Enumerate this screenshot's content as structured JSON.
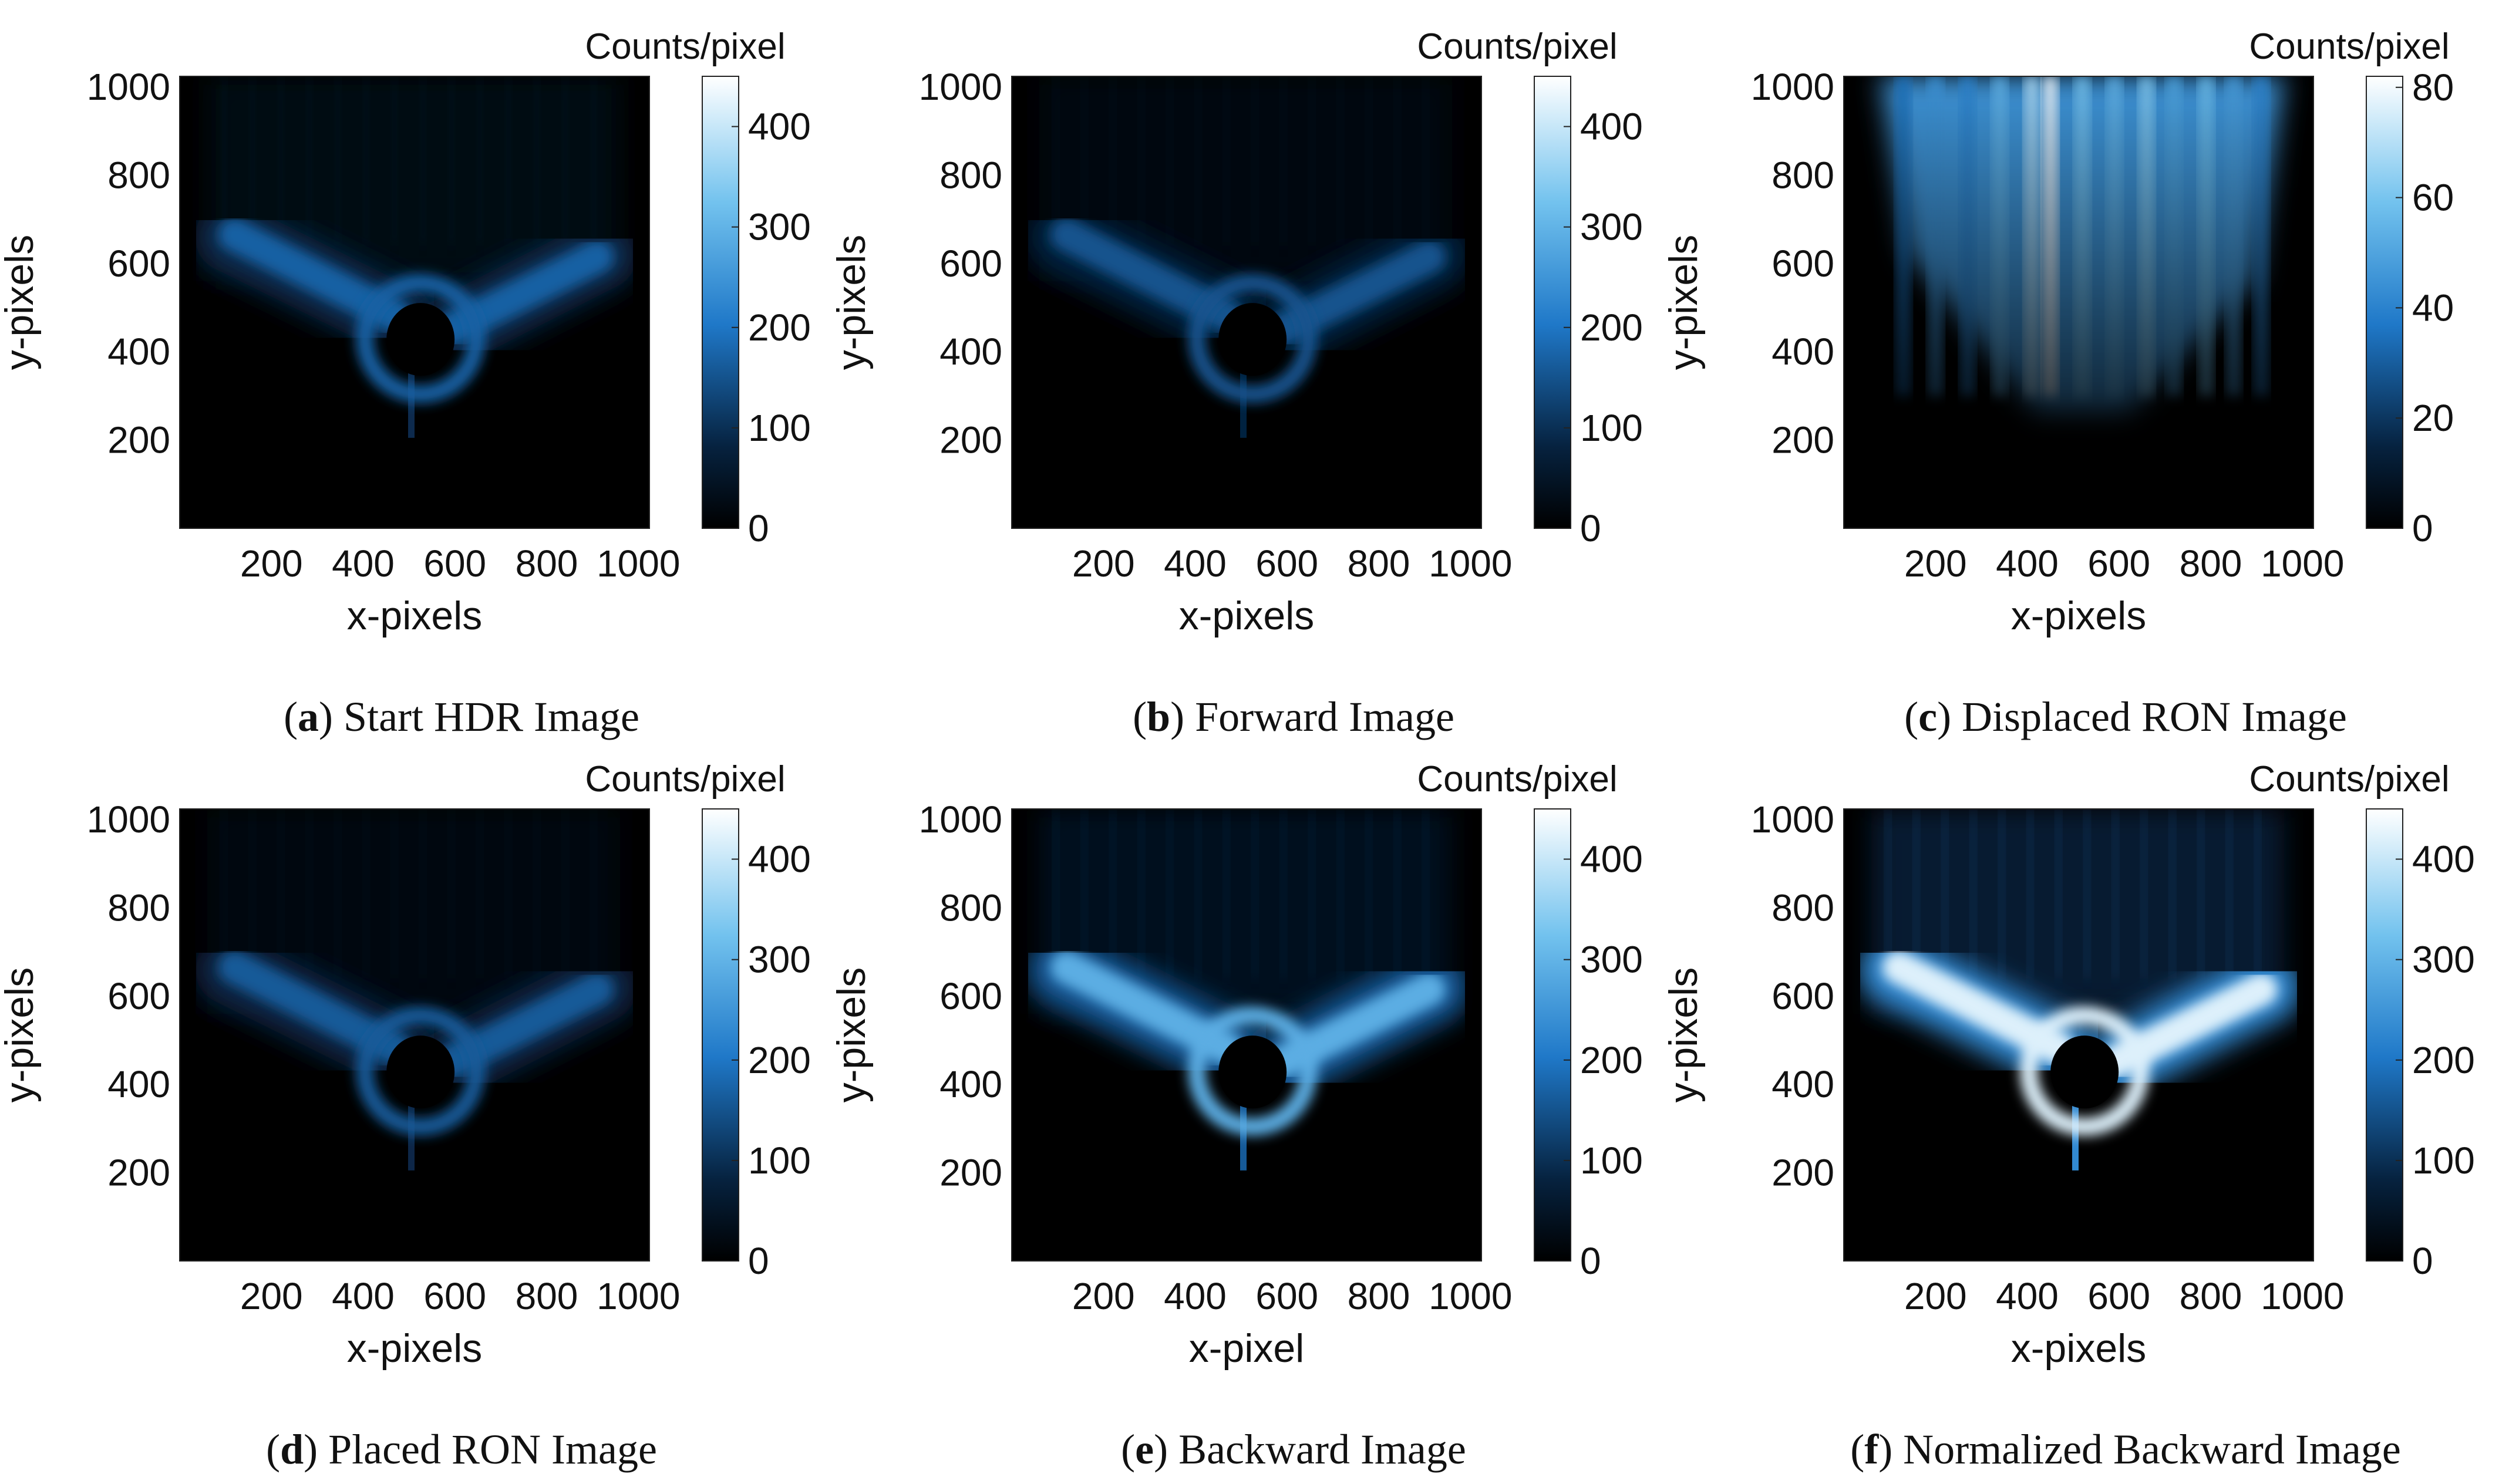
{
  "figure": {
    "colors": {
      "colormap_low": "#000000",
      "colormap_mid": "#1f78c8",
      "colormap_high": "#ffffff",
      "background": "#ffffff",
      "text": "#111111"
    }
  },
  "chart_data": [
    {
      "type": "heatmap",
      "panel_letter": "a",
      "caption": "Start HDR Image",
      "xlabel": "x-pixels",
      "ylabel": "y-pixels",
      "xlim": [
        0,
        1024
      ],
      "ylim": [
        0,
        1024
      ],
      "x_ticks": [
        200,
        400,
        600,
        800,
        1000
      ],
      "y_ticks": [
        200,
        400,
        600,
        800,
        1000
      ],
      "colorbar": {
        "label": "Counts/pixel",
        "ticks": [
          0,
          100,
          200,
          300,
          400
        ],
        "range": [
          0,
          450
        ]
      },
      "pattern": "y-shape",
      "peak_value": 170
    },
    {
      "type": "heatmap",
      "panel_letter": "b",
      "caption": "Forward Image",
      "xlabel": "x-pixels",
      "ylabel": "y-pixels",
      "xlim": [
        0,
        1024
      ],
      "ylim": [
        0,
        1024
      ],
      "x_ticks": [
        200,
        400,
        600,
        800,
        1000
      ],
      "y_ticks": [
        200,
        400,
        600,
        800,
        1000
      ],
      "colorbar": {
        "label": "Counts/pixel",
        "ticks": [
          0,
          100,
          200,
          300,
          400
        ],
        "range": [
          0,
          450
        ]
      },
      "pattern": "y-shape",
      "peak_value": 150
    },
    {
      "type": "heatmap",
      "panel_letter": "c",
      "caption": "Displaced RON Image",
      "xlabel": "x-pixels",
      "ylabel": "y-pixels",
      "xlim": [
        0,
        1024
      ],
      "ylim": [
        0,
        1024
      ],
      "x_ticks": [
        200,
        400,
        600,
        800,
        1000
      ],
      "y_ticks": [
        200,
        400,
        600,
        800,
        1000
      ],
      "colorbar": {
        "label": "Counts/pixel",
        "ticks": [
          0,
          20,
          40,
          60,
          80
        ],
        "range": [
          0,
          82
        ]
      },
      "pattern": "vertical-streaks",
      "peak_value": 80
    },
    {
      "type": "heatmap",
      "panel_letter": "d",
      "caption": "Placed RON Image",
      "xlabel": "x-pixels",
      "ylabel": "y-pixels",
      "xlim": [
        0,
        1024
      ],
      "ylim": [
        0,
        1024
      ],
      "x_ticks": [
        200,
        400,
        600,
        800,
        1000
      ],
      "y_ticks": [
        200,
        400,
        600,
        800,
        1000
      ],
      "colorbar": {
        "label": "Counts/pixel",
        "ticks": [
          0,
          100,
          200,
          300,
          400
        ],
        "range": [
          0,
          450
        ]
      },
      "pattern": "y-shape",
      "peak_value": 160
    },
    {
      "type": "heatmap",
      "panel_letter": "e",
      "caption": "Backward Image",
      "xlabel": "x-pixel",
      "ylabel": "y-pixels",
      "xlim": [
        0,
        1024
      ],
      "ylim": [
        0,
        1024
      ],
      "x_ticks": [
        200,
        400,
        600,
        800,
        1000
      ],
      "y_ticks": [
        200,
        400,
        600,
        800,
        1000
      ],
      "colorbar": {
        "label": "Counts/pixel",
        "ticks": [
          0,
          100,
          200,
          300,
          400
        ],
        "range": [
          0,
          450
        ]
      },
      "pattern": "y-shape",
      "peak_value": 290
    },
    {
      "type": "heatmap",
      "panel_letter": "f",
      "caption": "Normalized Backward Image",
      "xlabel": "x-pixels",
      "ylabel": "y-pixels",
      "xlim": [
        0,
        1024
      ],
      "ylim": [
        0,
        1024
      ],
      "x_ticks": [
        200,
        400,
        600,
        800,
        1000
      ],
      "y_ticks": [
        200,
        400,
        600,
        800,
        1000
      ],
      "colorbar": {
        "label": "Counts/pixel",
        "ticks": [
          0,
          100,
          200,
          300,
          400
        ],
        "range": [
          0,
          450
        ]
      },
      "pattern": "y-shape",
      "peak_value": 420
    }
  ]
}
